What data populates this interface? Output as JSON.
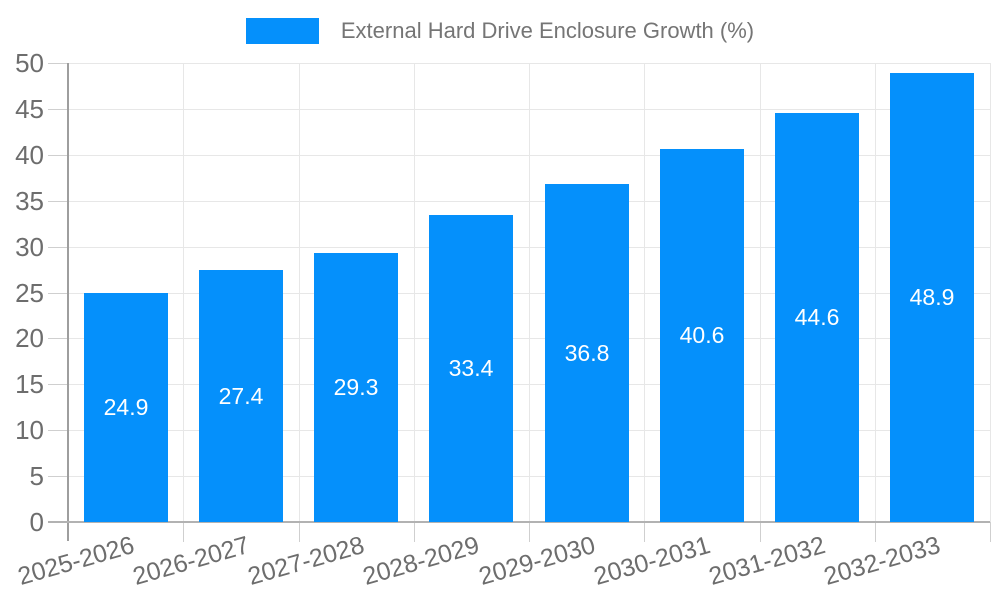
{
  "chart_data": {
    "type": "bar",
    "title": "External Hard Drive Enclosure Growth (%)",
    "categories": [
      "2025-2026",
      "2026-2027",
      "2027-2028",
      "2028-2029",
      "2029-2030",
      "2030-2031",
      "2031-2032",
      "2032-2033"
    ],
    "values": [
      24.9,
      27.4,
      29.3,
      33.4,
      36.8,
      40.6,
      44.6,
      48.9
    ],
    "value_labels": [
      "24.9",
      "27.4",
      "29.3",
      "33.4",
      "36.8",
      "40.6",
      "44.6",
      "48.9"
    ],
    "ylim": [
      0,
      50
    ],
    "yticks": [
      0,
      5,
      10,
      15,
      20,
      25,
      30,
      35,
      40,
      45,
      50
    ],
    "xlabel": "",
    "ylabel": "",
    "grid": true,
    "legend_position": "top",
    "colors": {
      "bar": "#0590fb",
      "value_label": "#ffffff",
      "axis_label": "#6d6d6d",
      "legend_text": "#757575",
      "gridline": "#e7e7e7",
      "tick": "#cfcfcf",
      "y_axis_line": "#9e9e9e",
      "x_axis_line": "#b2b2b2",
      "background": "#ffffff"
    }
  },
  "legend": {
    "label": "External Hard Drive Enclosure Growth (%)"
  }
}
